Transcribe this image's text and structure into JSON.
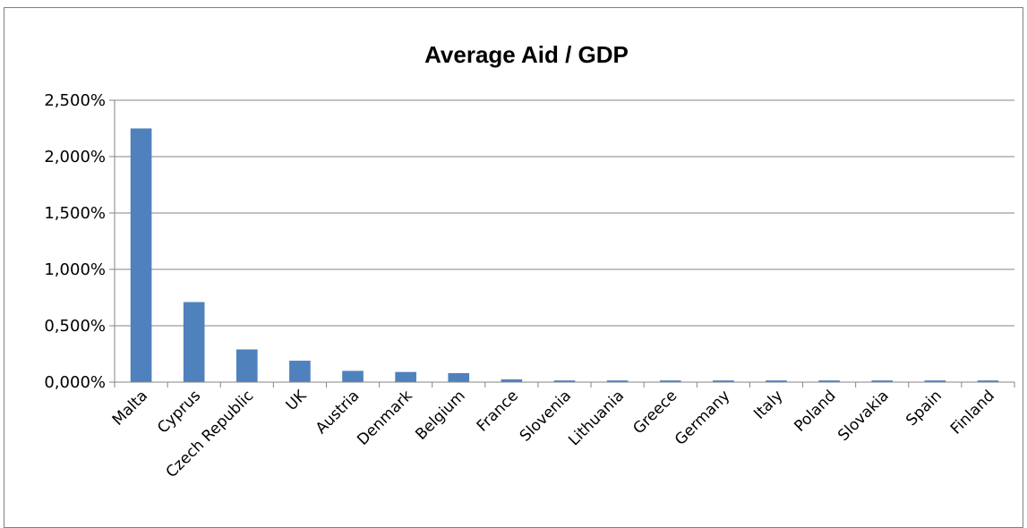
{
  "chart_data": {
    "type": "bar",
    "title": "Average Aid / GDP",
    "xlabel": "",
    "ylabel": "",
    "ylim": [
      0,
      2.5
    ],
    "ytick_values": [
      0,
      0.5,
      1.0,
      1.5,
      2.0,
      2.5
    ],
    "ytick_labels": [
      "0,000%",
      "0,500%",
      "1,000%",
      "1,500%",
      "2,000%",
      "2,500%"
    ],
    "categories": [
      "Malta",
      "Cyprus",
      "Czech Republic",
      "UK",
      "Austria",
      "Denmark",
      "Belgium",
      "France",
      "Slovenia",
      "Lithuania",
      "Greece",
      "Germany",
      "Italy",
      "Poland",
      "Slovakia",
      "Spain",
      "Finland"
    ],
    "values": [
      2.25,
      0.71,
      0.29,
      0.19,
      0.1,
      0.09,
      0.08,
      0.025,
      0.015,
      0.015,
      0.015,
      0.015,
      0.015,
      0.015,
      0.015,
      0.015,
      0.015
    ],
    "grid": true,
    "legend": "none",
    "bar_color": "#4f81bd",
    "grid_color": "#868686"
  }
}
